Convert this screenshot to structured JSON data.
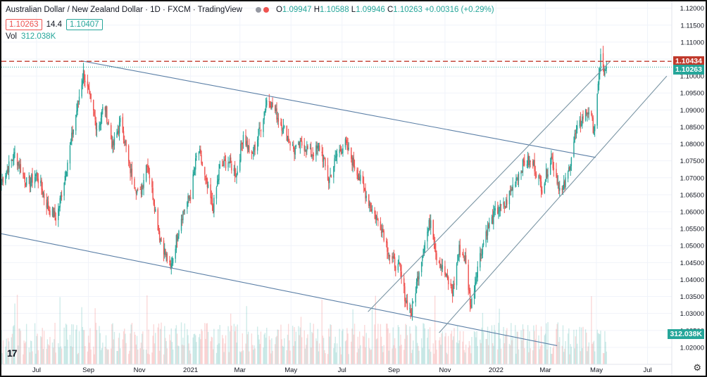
{
  "header": {
    "symbol": "Australian Dollar / New Zealand Dollar · 1D · FXCM · TradingView",
    "ohlc": {
      "o_label": "O",
      "o": "1.09947",
      "h_label": "H",
      "h": "1.10588",
      "l_label": "L",
      "l": "1.09946",
      "c_label": "C",
      "c": "1.10263",
      "change": "+0.00316 (+0.29%)"
    },
    "sell_price": "1.10263",
    "spread": "14.4",
    "buy_price": "1.10407",
    "volume_label": "Vol",
    "volume_value": "312.038K"
  },
  "colors": {
    "up": "#26a69a",
    "down": "#ef5350",
    "trendline": "#5b7fa6",
    "channel": "#7a95a4",
    "red_line": "#c0392b"
  },
  "price_tags": {
    "red": "1.10434",
    "current": "1.10263",
    "volume": "312.038K"
  },
  "chart_data": {
    "type": "candlestick",
    "symbol": "AUDNZD",
    "timeframe": "1D",
    "y_axis": {
      "min": 1.015,
      "max": 1.122,
      "ticks": [
        1.12,
        1.115,
        1.11,
        1.105,
        1.1,
        1.095,
        1.09,
        1.085,
        1.08,
        1.075,
        1.07,
        1.065,
        1.06,
        1.055,
        1.05,
        1.045,
        1.04,
        1.035,
        1.03,
        1.025,
        1.02
      ],
      "tick_labels": [
        "1.12000",
        "1.11500",
        "1.11000",
        "1.10500",
        "1.10000",
        "1.09500",
        "1.09000",
        "1.08500",
        "1.08000",
        "1.07500",
        "1.07000",
        "1.06500",
        "1.06000",
        "1.05500",
        "1.05000",
        "1.04500",
        "1.04000",
        "1.03500",
        "1.03000",
        "1.02500",
        "1.02000"
      ]
    },
    "x_axis": {
      "start": "2020-05-20",
      "end": "2022-07-30",
      "ticks": [
        {
          "label": "Jul",
          "date": "2020-07-01"
        },
        {
          "label": "Sep",
          "date": "2020-09-01"
        },
        {
          "label": "Nov",
          "date": "2020-11-01"
        },
        {
          "label": "2021",
          "date": "2021-01-01"
        },
        {
          "label": "Mar",
          "date": "2021-03-01"
        },
        {
          "label": "May",
          "date": "2021-05-01"
        },
        {
          "label": "Jul",
          "date": "2021-07-01"
        },
        {
          "label": "Sep",
          "date": "2021-09-01"
        },
        {
          "label": "Nov",
          "date": "2021-11-01"
        },
        {
          "label": "2022",
          "date": "2022-01-01"
        },
        {
          "label": "Mar",
          "date": "2022-03-01"
        },
        {
          "label": "May",
          "date": "2022-05-01"
        },
        {
          "label": "Jul",
          "date": "2022-07-01"
        }
      ]
    },
    "close_path": [
      [
        "2020-05-20",
        1.069
      ],
      [
        "2020-06-05",
        1.077
      ],
      [
        "2020-06-20",
        1.068
      ],
      [
        "2020-07-01",
        1.071
      ],
      [
        "2020-07-15",
        1.061
      ],
      [
        "2020-07-25",
        1.058
      ],
      [
        "2020-08-05",
        1.072
      ],
      [
        "2020-08-18",
        1.09
      ],
      [
        "2020-08-26",
        1.101
      ],
      [
        "2020-09-01",
        1.095
      ],
      [
        "2020-09-12",
        1.084
      ],
      [
        "2020-09-20",
        1.092
      ],
      [
        "2020-09-30",
        1.079
      ],
      [
        "2020-10-10",
        1.087
      ],
      [
        "2020-10-20",
        1.073
      ],
      [
        "2020-11-01",
        1.064
      ],
      [
        "2020-11-10",
        1.075
      ],
      [
        "2020-11-25",
        1.053
      ],
      [
        "2020-12-08",
        1.043
      ],
      [
        "2020-12-20",
        1.058
      ],
      [
        "2021-01-01",
        1.065
      ],
      [
        "2021-01-10",
        1.079
      ],
      [
        "2021-01-20",
        1.068
      ],
      [
        "2021-01-28",
        1.061
      ],
      [
        "2021-02-05",
        1.073
      ],
      [
        "2021-02-15",
        1.075
      ],
      [
        "2021-02-25",
        1.071
      ],
      [
        "2021-03-05",
        1.083
      ],
      [
        "2021-03-15",
        1.076
      ],
      [
        "2021-03-27",
        1.086
      ],
      [
        "2021-04-03",
        1.094
      ],
      [
        "2021-04-15",
        1.088
      ],
      [
        "2021-04-25",
        1.083
      ],
      [
        "2021-05-05",
        1.078
      ],
      [
        "2021-05-15",
        1.08
      ],
      [
        "2021-05-25",
        1.077
      ],
      [
        "2021-06-05",
        1.079
      ],
      [
        "2021-06-15",
        1.069
      ],
      [
        "2021-06-25",
        1.077
      ],
      [
        "2021-07-05",
        1.08
      ],
      [
        "2021-07-15",
        1.074
      ],
      [
        "2021-07-25",
        1.068
      ],
      [
        "2021-08-05",
        1.061
      ],
      [
        "2021-08-18",
        1.055
      ],
      [
        "2021-08-28",
        1.046
      ],
      [
        "2021-09-08",
        1.043
      ],
      [
        "2021-09-15",
        1.034
      ],
      [
        "2021-09-22",
        1.03
      ],
      [
        "2021-10-01",
        1.043
      ],
      [
        "2021-10-08",
        1.051
      ],
      [
        "2021-10-15",
        1.058
      ],
      [
        "2021-10-22",
        1.047
      ],
      [
        "2021-11-02",
        1.041
      ],
      [
        "2021-11-10",
        1.036
      ],
      [
        "2021-11-18",
        1.049
      ],
      [
        "2021-11-25",
        1.046
      ],
      [
        "2021-12-02",
        1.032
      ],
      [
        "2021-12-10",
        1.044
      ],
      [
        "2021-12-20",
        1.054
      ],
      [
        "2022-01-01",
        1.06
      ],
      [
        "2022-01-12",
        1.062
      ],
      [
        "2022-01-25",
        1.07
      ],
      [
        "2022-02-05",
        1.075
      ],
      [
        "2022-02-15",
        1.074
      ],
      [
        "2022-02-25",
        1.067
      ],
      [
        "2022-03-08",
        1.076
      ],
      [
        "2022-03-20",
        1.065
      ],
      [
        "2022-03-28",
        1.071
      ],
      [
        "2022-04-05",
        1.082
      ],
      [
        "2022-04-15",
        1.088
      ],
      [
        "2022-04-22",
        1.09
      ],
      [
        "2022-04-28",
        1.084
      ],
      [
        "2022-05-03",
        1.096
      ],
      [
        "2022-05-06",
        1.107
      ],
      [
        "2022-05-10",
        1.1
      ],
      [
        "2022-05-13",
        1.1026
      ]
    ],
    "trendlines": [
      {
        "name": "upper-downtrend",
        "from": [
          "2020-08-23",
          1.1045
        ],
        "to": [
          "2022-04-30",
          1.076
        ]
      },
      {
        "name": "lower-downtrend",
        "from": [
          "2020-05-20",
          1.0535
        ],
        "to": [
          "2022-03-15",
          1.0205
        ]
      },
      {
        "name": "channel-upper",
        "from": [
          "2021-08-01",
          1.0305
        ],
        "to": [
          "2022-05-18",
          1.1045
        ]
      },
      {
        "name": "channel-lower",
        "from": [
          "2021-10-25",
          1.0243
        ],
        "to": [
          "2022-07-24",
          1.1
        ]
      }
    ],
    "horizontal_line": {
      "price": 1.10434,
      "style": "dashed"
    },
    "current_price": 1.10263
  }
}
